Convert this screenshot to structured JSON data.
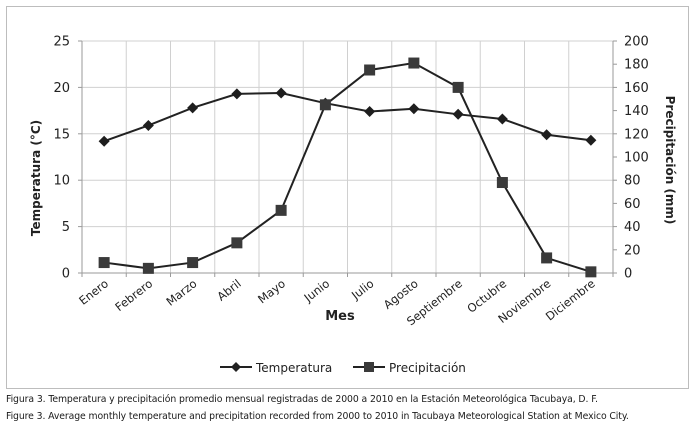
{
  "chart_data": {
    "type": "line",
    "categories": [
      "Enero",
      "Febrero",
      "Marzo",
      "Abril",
      "Mayo",
      "Junio",
      "Julio",
      "Agosto",
      "Septiembre",
      "Octubre",
      "Noviembre",
      "Diciembre"
    ],
    "series": [
      {
        "name": "Temperatura",
        "axis": "left",
        "marker": "diamond",
        "values": [
          14.2,
          15.9,
          17.8,
          19.3,
          19.4,
          18.3,
          17.4,
          17.7,
          17.1,
          16.6,
          14.9,
          14.3
        ]
      },
      {
        "name": "Precipitación",
        "axis": "right",
        "marker": "square",
        "values": [
          9,
          4,
          9,
          26,
          54,
          145,
          175,
          181,
          160,
          78,
          13,
          1
        ]
      }
    ],
    "xlabel": "Mes",
    "ylabel": "Temperatura (°C)",
    "y2label": "Precipitación (mm)",
    "ylim": [
      0,
      25
    ],
    "y2lim": [
      0,
      200
    ],
    "yticks": [
      "0",
      "5",
      "10",
      "15",
      "20",
      "25"
    ],
    "y2ticks": [
      "0",
      "20",
      "40",
      "60",
      "80",
      "100",
      "120",
      "140",
      "160",
      "180",
      "200"
    ],
    "grid": true,
    "legend_position": "bottom"
  },
  "caption": {
    "spanish": "Figura 3. Temperatura y precipitación promedio mensual registradas de 2000 a 2010 en la Estación Meteorológica Tacubaya, D. F.",
    "english": "Figure 3. Average monthly temperature and precipitation recorded from 2000 to 2010 in Tacubaya Meteorological Station at Mexico City."
  },
  "colors": {
    "line": "#222222",
    "grid": "#d0d0d0",
    "axis": "#9a9a9a"
  }
}
